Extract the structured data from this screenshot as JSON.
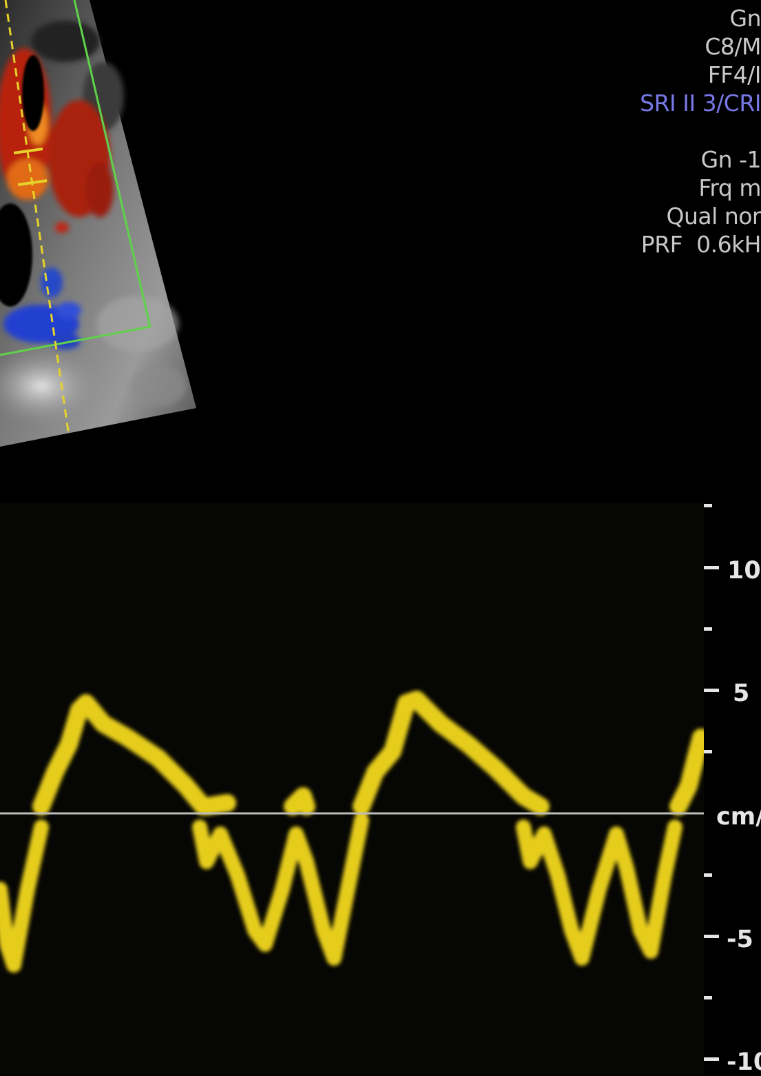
{
  "params_top": [
    {
      "text": "Gn",
      "color": "#c8c8c8"
    },
    {
      "text": "C8/M",
      "color": "#c8c8c8"
    },
    {
      "text": "FF4/I",
      "color": "#c8c8c8"
    },
    {
      "text": "SRI II 3/CRI",
      "color": "#7878e6"
    }
  ],
  "params_doppler": [
    {
      "text": "Gn -1"
    },
    {
      "text": "Frq m"
    },
    {
      "text": "Qual nor"
    },
    {
      "text": "PRF  0.6kH"
    }
  ],
  "spectrum": {
    "unit_label": "cm/",
    "scale_labels": [
      "10",
      "5",
      "-5",
      "-10"
    ],
    "colors": {
      "trace": "#e6cd1e",
      "baseline": "#bdbdbd",
      "flow_red": "#c0280f",
      "flow_blue": "#2040c8",
      "sample_line": "#e6d22a",
      "roi_box": "#5fd24a"
    }
  }
}
